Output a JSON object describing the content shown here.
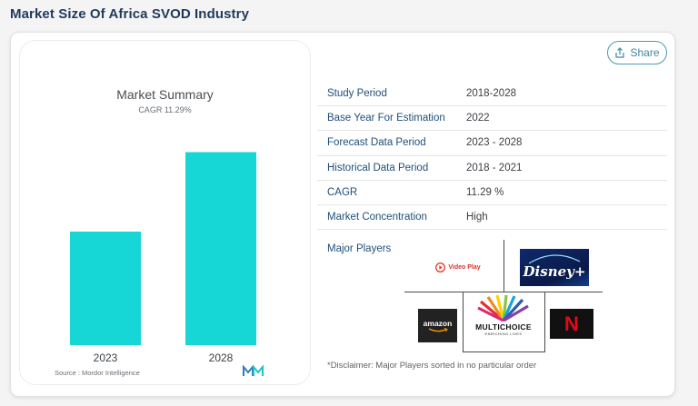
{
  "page": {
    "title": "Market Size Of Africa SVOD Industry"
  },
  "summary": {
    "title": "Market Summary",
    "cagr_label": "CAGR 11.29%",
    "source": "Source : Mordor Intelligence"
  },
  "chart_data": {
    "type": "bar",
    "categories": [
      "2023",
      "2028"
    ],
    "values": [
      1.0,
      1.7
    ],
    "title": "Market Summary",
    "subtitle": "CAGR 11.29%",
    "xlabel": "",
    "ylabel": "",
    "ylim": [
      0,
      1.8
    ],
    "bar_color": "#17d6d6",
    "grid": false
  },
  "share": {
    "label": "Share"
  },
  "details": [
    {
      "key": "Study Period",
      "value": "2018-2028"
    },
    {
      "key": "Base Year For Estimation",
      "value": "2022"
    },
    {
      "key": "Forecast Data Period",
      "value": "2023 - 2028"
    },
    {
      "key": "Historical Data Period",
      "value": "2018 - 2021"
    },
    {
      "key": "CAGR",
      "value": "11.29 %"
    },
    {
      "key": "Market Concentration",
      "value": "High"
    }
  ],
  "players": {
    "label": "Major Players",
    "logos": {
      "videoplay": "Video Play",
      "disney": "Disney+",
      "amazon": "amazon",
      "multichoice": "MULTICHOICE",
      "multichoice_tagline": "ENRICHING LIVES",
      "netflix": "N"
    },
    "disclaimer": "*Disclaimer: Major Players sorted in no particular order"
  },
  "colors": {
    "accent": "#3e86a3",
    "title": "#1f3a5c",
    "key": "#1f4e79",
    "bar": "#17d6d6"
  }
}
